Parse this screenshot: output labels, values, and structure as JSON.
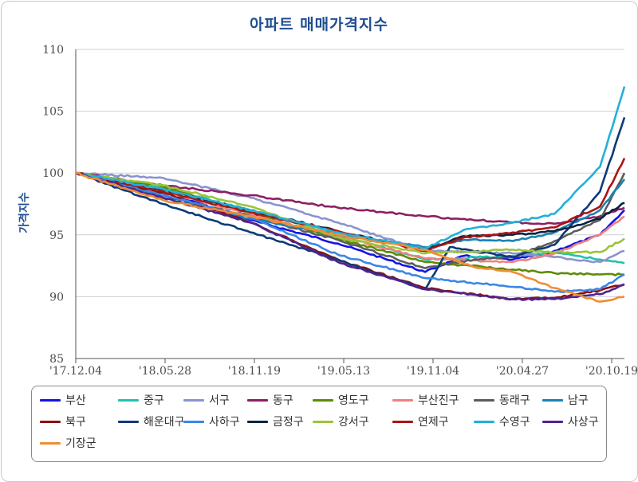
{
  "chart_data": {
    "type": "line",
    "title": "아파트 매매가격지수",
    "ylabel": "가격지수",
    "xlabel": "",
    "ylim": [
      85,
      110
    ],
    "yticks": [
      85,
      90,
      95,
      100,
      105,
      110
    ],
    "x_tick_labels": [
      "'17.12.04",
      "'18.05.28",
      "'18.11.19",
      "'19.05.13",
      "'19.11.04",
      "'20.04.27",
      "'20.10.19"
    ],
    "x_start": "2017-12-04",
    "x_end": "2020-12-07",
    "grid": "horizontal",
    "legend_position": "bottom",
    "series": [
      {
        "name": "부산",
        "color": "#1414e6",
        "points": [
          [
            "2017-12-04",
            100
          ],
          [
            "2018-05-28",
            98.5
          ],
          [
            "2018-11-19",
            96.2
          ],
          [
            "2019-05-13",
            94.3
          ],
          [
            "2019-11-04",
            92.0
          ],
          [
            "2020-01-20",
            93.3
          ],
          [
            "2020-04-27",
            93.0
          ],
          [
            "2020-07-06",
            93.5
          ],
          [
            "2020-10-19",
            95.0
          ],
          [
            "2020-12-07",
            97.0
          ]
        ]
      },
      {
        "name": "중구",
        "color": "#22c2b0",
        "points": [
          [
            "2017-12-04",
            100
          ],
          [
            "2018-05-28",
            98.8
          ],
          [
            "2018-11-19",
            97.0
          ],
          [
            "2019-05-13",
            95.0
          ],
          [
            "2019-11-04",
            93.0
          ],
          [
            "2020-04-27",
            93.3
          ],
          [
            "2020-07-20",
            93.6
          ],
          [
            "2020-10-19",
            93.0
          ],
          [
            "2020-12-07",
            92.7
          ]
        ]
      },
      {
        "name": "서구",
        "color": "#8a93cf",
        "points": [
          [
            "2017-12-04",
            100
          ],
          [
            "2018-05-28",
            99.6
          ],
          [
            "2018-11-19",
            98.0
          ],
          [
            "2019-05-13",
            96.0
          ],
          [
            "2019-11-04",
            93.7
          ],
          [
            "2020-04-27",
            93.5
          ],
          [
            "2020-07-20",
            93.2
          ],
          [
            "2020-10-19",
            92.8
          ],
          [
            "2020-12-07",
            93.7
          ]
        ]
      },
      {
        "name": "동구",
        "color": "#8c1f63",
        "points": [
          [
            "2017-12-04",
            100
          ],
          [
            "2018-05-28",
            99.0
          ],
          [
            "2018-11-19",
            98.2
          ],
          [
            "2019-05-13",
            97.2
          ],
          [
            "2019-11-04",
            96.5
          ],
          [
            "2020-04-27",
            96.0
          ],
          [
            "2020-07-20",
            95.9
          ],
          [
            "2020-10-19",
            96.5
          ],
          [
            "2020-12-07",
            97.2
          ]
        ]
      },
      {
        "name": "영도구",
        "color": "#5f8a08",
        "points": [
          [
            "2017-12-04",
            100
          ],
          [
            "2018-05-28",
            98.9
          ],
          [
            "2018-11-19",
            96.8
          ],
          [
            "2019-05-13",
            94.7
          ],
          [
            "2019-11-04",
            92.8
          ],
          [
            "2020-04-27",
            92.2
          ],
          [
            "2020-07-20",
            91.9
          ],
          [
            "2020-10-19",
            91.8
          ],
          [
            "2020-12-07",
            91.8
          ]
        ]
      },
      {
        "name": "부산진구",
        "color": "#f08080",
        "points": [
          [
            "2017-12-04",
            100
          ],
          [
            "2018-05-28",
            98.5
          ],
          [
            "2018-11-19",
            96.6
          ],
          [
            "2019-05-13",
            94.9
          ],
          [
            "2019-11-04",
            93.1
          ],
          [
            "2020-04-27",
            92.8
          ],
          [
            "2020-07-20",
            93.5
          ],
          [
            "2020-10-19",
            95.0
          ],
          [
            "2020-12-07",
            96.5
          ]
        ]
      },
      {
        "name": "동래구",
        "color": "#5c5c5c",
        "points": [
          [
            "2017-12-04",
            100
          ],
          [
            "2018-05-28",
            98.2
          ],
          [
            "2018-11-19",
            96.5
          ],
          [
            "2019-05-13",
            94.6
          ],
          [
            "2019-11-04",
            92.3
          ],
          [
            "2020-02-10",
            93.0
          ],
          [
            "2020-04-27",
            93.2
          ],
          [
            "2020-07-20",
            94.5
          ],
          [
            "2020-10-19",
            96.2
          ],
          [
            "2020-12-07",
            100.0
          ]
        ]
      },
      {
        "name": "남구",
        "color": "#1a82b4",
        "points": [
          [
            "2017-12-04",
            100
          ],
          [
            "2018-05-28",
            98.0
          ],
          [
            "2018-11-19",
            96.3
          ],
          [
            "2019-05-13",
            95.0
          ],
          [
            "2019-11-04",
            94.0
          ],
          [
            "2020-01-20",
            94.6
          ],
          [
            "2020-04-27",
            94.5
          ],
          [
            "2020-07-20",
            95.2
          ],
          [
            "2020-10-19",
            97.0
          ],
          [
            "2020-12-07",
            99.5
          ]
        ]
      },
      {
        "name": "북구",
        "color": "#8b1010",
        "points": [
          [
            "2017-12-04",
            100
          ],
          [
            "2018-05-28",
            98.4
          ],
          [
            "2018-11-19",
            96.0
          ],
          [
            "2019-05-13",
            93.0
          ],
          [
            "2019-11-04",
            90.7
          ],
          [
            "2020-04-27",
            89.8
          ],
          [
            "2020-07-20",
            89.9
          ],
          [
            "2020-10-19",
            90.5
          ],
          [
            "2020-12-07",
            91.0
          ]
        ]
      },
      {
        "name": "해운대구",
        "color": "#0d3a78",
        "points": [
          [
            "2017-12-04",
            100
          ],
          [
            "2018-05-28",
            97.5
          ],
          [
            "2018-11-19",
            95.2
          ],
          [
            "2019-05-13",
            93.0
          ],
          [
            "2019-11-04",
            90.6
          ],
          [
            "2019-12-23",
            94.0
          ],
          [
            "2020-04-27",
            93.2
          ],
          [
            "2020-07-20",
            94.2
          ],
          [
            "2020-10-19",
            98.5
          ],
          [
            "2020-12-07",
            104.5
          ]
        ]
      },
      {
        "name": "사하구",
        "color": "#3b86e6",
        "points": [
          [
            "2017-12-04",
            100
          ],
          [
            "2018-05-28",
            98.2
          ],
          [
            "2018-11-19",
            96.4
          ],
          [
            "2019-05-13",
            93.4
          ],
          [
            "2019-11-04",
            91.5
          ],
          [
            "2020-04-27",
            90.8
          ],
          [
            "2020-07-20",
            90.4
          ],
          [
            "2020-10-19",
            90.6
          ],
          [
            "2020-12-07",
            91.8
          ]
        ]
      },
      {
        "name": "금정구",
        "color": "#08233f",
        "points": [
          [
            "2017-12-04",
            100
          ],
          [
            "2018-05-28",
            98.6
          ],
          [
            "2018-11-19",
            97.0
          ],
          [
            "2019-05-13",
            95.3
          ],
          [
            "2019-11-04",
            93.8
          ],
          [
            "2020-01-20",
            94.9
          ],
          [
            "2020-04-27",
            95.0
          ],
          [
            "2020-07-20",
            95.3
          ],
          [
            "2020-10-19",
            96.3
          ],
          [
            "2020-12-07",
            97.6
          ]
        ]
      },
      {
        "name": "강서구",
        "color": "#9ac43a",
        "points": [
          [
            "2017-12-04",
            100
          ],
          [
            "2018-05-28",
            99.0
          ],
          [
            "2018-11-19",
            97.3
          ],
          [
            "2019-05-13",
            94.8
          ],
          [
            "2019-11-04",
            93.5
          ],
          [
            "2020-04-27",
            93.8
          ],
          [
            "2020-07-20",
            93.6
          ],
          [
            "2020-10-19",
            93.6
          ],
          [
            "2020-12-07",
            94.7
          ]
        ]
      },
      {
        "name": "연제구",
        "color": "#a81616",
        "points": [
          [
            "2017-12-04",
            100
          ],
          [
            "2018-05-28",
            98.5
          ],
          [
            "2018-11-19",
            96.8
          ],
          [
            "2019-05-13",
            95.3
          ],
          [
            "2019-11-04",
            93.7
          ],
          [
            "2020-01-20",
            94.8
          ],
          [
            "2020-04-27",
            95.2
          ],
          [
            "2020-07-20",
            95.6
          ],
          [
            "2020-10-19",
            97.3
          ],
          [
            "2020-12-07",
            101.2
          ]
        ]
      },
      {
        "name": "수영구",
        "color": "#22b0d8",
        "points": [
          [
            "2017-12-04",
            100
          ],
          [
            "2018-05-28",
            98.7
          ],
          [
            "2018-11-19",
            97.0
          ],
          [
            "2019-05-13",
            95.2
          ],
          [
            "2019-11-04",
            93.9
          ],
          [
            "2020-01-20",
            95.4
          ],
          [
            "2020-04-27",
            96.0
          ],
          [
            "2020-07-20",
            96.7
          ],
          [
            "2020-10-19",
            100.5
          ],
          [
            "2020-12-07",
            107.0
          ]
        ]
      },
      {
        "name": "사상구",
        "color": "#4f2390",
        "points": [
          [
            "2017-12-04",
            100
          ],
          [
            "2018-05-28",
            98.0
          ],
          [
            "2018-11-19",
            96.0
          ],
          [
            "2019-05-13",
            92.8
          ],
          [
            "2019-11-04",
            90.6
          ],
          [
            "2020-04-27",
            89.8
          ],
          [
            "2020-07-20",
            89.8
          ],
          [
            "2020-10-19",
            90.2
          ],
          [
            "2020-12-07",
            91.0
          ]
        ]
      },
      {
        "name": "기장군",
        "color": "#f08c35",
        "points": [
          [
            "2017-12-04",
            100
          ],
          [
            "2018-05-28",
            97.8
          ],
          [
            "2018-11-19",
            96.5
          ],
          [
            "2019-05-13",
            95.0
          ],
          [
            "2019-11-04",
            93.8
          ],
          [
            "2020-02-10",
            92.4
          ],
          [
            "2020-04-27",
            92.0
          ],
          [
            "2020-07-20",
            90.7
          ],
          [
            "2020-10-19",
            89.6
          ],
          [
            "2020-12-07",
            90.0
          ]
        ]
      }
    ]
  }
}
